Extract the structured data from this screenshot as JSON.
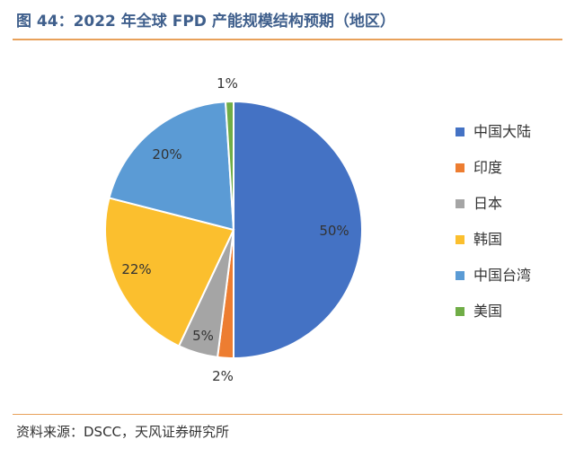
{
  "title": "图 44：2022 年全球 FPD 产能规模结构预期（地区）",
  "source": "资料来源：DSCC，天风证券研究所",
  "chart_data": {
    "type": "pie",
    "title": "",
    "categories": [
      "中国大陆",
      "印度",
      "日本",
      "韩国",
      "中国台湾",
      "美国"
    ],
    "values": [
      50,
      2,
      5,
      22,
      20,
      1
    ],
    "labels": [
      "50%",
      "2%",
      "5%",
      "22%",
      "20%",
      "1%"
    ],
    "colors": [
      "#4472c4",
      "#ed7d31",
      "#a5a5a5",
      "#fbbf2e",
      "#5b9bd5",
      "#70ad47"
    ],
    "start_angle": "12 o'clock, clockwise",
    "legend_position": "right"
  }
}
